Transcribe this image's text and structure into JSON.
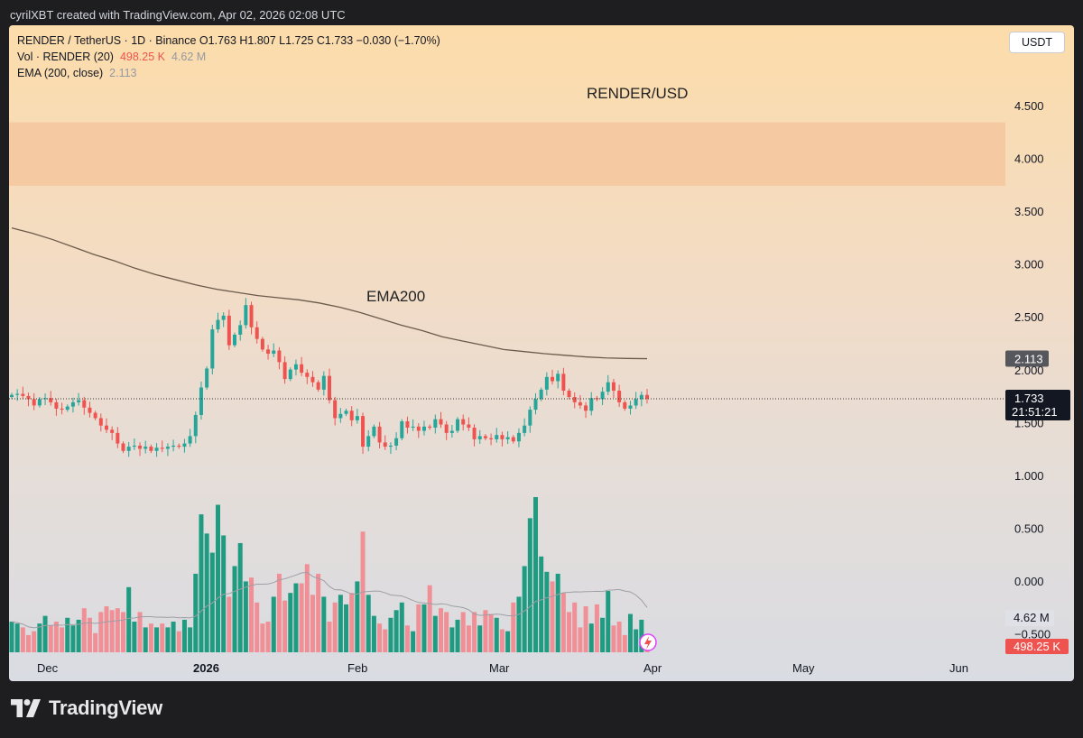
{
  "header": {
    "credit": "cyrilXBT created with TradingView.com, Apr 02, 2026 02:08 UTC"
  },
  "legend": {
    "line1": "RENDER / TetherUS · 1D · Binance  O1.763  H1.807  L1.725  C1.733  −0.030 (−1.70%)",
    "vol_label": "Vol · RENDER (20)",
    "vol_value": "498.25 K",
    "vol_ma": "4.62 M",
    "ema_label": "EMA (200, close)",
    "ema_value": "2.113"
  },
  "currency_button": "USDT",
  "annotations": {
    "title": "RENDER/USD",
    "ema": "EMA200"
  },
  "footer": {
    "brand": "TradingView"
  },
  "chart_data": {
    "type": "candlestick",
    "symbol": "RENDER / TetherUS",
    "interval": "1D",
    "exchange": "Binance",
    "last": {
      "open": 1.763,
      "high": 1.807,
      "low": 1.725,
      "close": 1.733,
      "change": "−0.030",
      "change_pct": "−1.70%"
    },
    "ema200": 2.113,
    "price_axis": {
      "ticks": [
        "4.500",
        "4.000",
        "3.500",
        "3.000",
        "2.500",
        "2.000",
        "1.500",
        "1.000",
        "0.500",
        "0.000",
        "−0.500"
      ],
      "range": [
        -0.7,
        5.0
      ]
    },
    "price_labels": {
      "ema": "2.113",
      "last": "1.733",
      "countdown": "21:51:21",
      "vol_ma": "4.62 M",
      "vol": "498.25 K"
    },
    "time_axis": [
      "Dec",
      "2026",
      "Feb",
      "Mar",
      "Apr",
      "May",
      "Jun"
    ],
    "resistance_zone": {
      "from": 3.75,
      "to": 4.35,
      "color": "#f5c59e"
    },
    "colors": {
      "up": "#26a69a",
      "down": "#ef5350",
      "vol_up": "#1e9b80",
      "vol_down": "#f08f95",
      "ema": "#6b5a4a"
    },
    "candles_close": [
      1.77,
      1.78,
      1.76,
      1.73,
      1.67,
      1.73,
      1.74,
      1.7,
      1.64,
      1.63,
      1.66,
      1.7,
      1.72,
      1.65,
      1.6,
      1.55,
      1.48,
      1.44,
      1.41,
      1.31,
      1.24,
      1.28,
      1.29,
      1.26,
      1.28,
      1.24,
      1.27,
      1.26,
      1.28,
      1.29,
      1.28,
      1.31,
      1.38,
      1.58,
      1.84,
      2.02,
      2.39,
      2.48,
      2.52,
      2.24,
      2.34,
      2.43,
      2.62,
      2.41,
      2.3,
      2.2,
      2.16,
      2.19,
      2.08,
      1.92,
      2.01,
      2.06,
      1.98,
      1.94,
      1.89,
      1.82,
      1.95,
      1.72,
      1.55,
      1.59,
      1.62,
      1.53,
      1.57,
      1.28,
      1.38,
      1.47,
      1.32,
      1.28,
      1.29,
      1.36,
      1.52,
      1.46,
      1.47,
      1.43,
      1.47,
      1.46,
      1.54,
      1.49,
      1.41,
      1.43,
      1.54,
      1.49,
      1.46,
      1.35,
      1.38,
      1.36,
      1.35,
      1.39,
      1.35,
      1.37,
      1.33,
      1.41,
      1.48,
      1.63,
      1.73,
      1.82,
      1.94,
      1.9,
      1.97,
      1.81,
      1.75,
      1.7,
      1.67,
      1.62,
      1.74,
      1.73,
      1.8,
      1.89,
      1.81,
      1.7,
      1.64,
      1.67,
      1.73,
      1.77,
      1.733
    ],
    "volume": [
      1.6,
      1.5,
      1.3,
      0.9,
      1.1,
      1.5,
      1.9,
      1.4,
      1.6,
      1.3,
      1.8,
      1.4,
      1.7,
      2.3,
      1.8,
      1.0,
      2.1,
      2.4,
      2.2,
      2.3,
      2.1,
      3.4,
      1.6,
      2.1,
      1.3,
      1.5,
      1.3,
      1.5,
      1.3,
      1.6,
      1.1,
      1.7,
      1.3,
      4.1,
      7.2,
      6.2,
      5.2,
      7.7,
      6.1,
      2.9,
      4.5,
      5.7,
      3.7,
      3.9,
      2.6,
      1.5,
      1.6,
      2.9,
      4.1,
      2.7,
      3.1,
      3.6,
      3.6,
      4.6,
      3.0,
      4.1,
      2.9,
      1.6,
      2.6,
      3.0,
      2.5,
      3.1,
      3.7,
      6.3,
      3.0,
      1.9,
      1.5,
      1.2,
      1.8,
      2.2,
      2.6,
      1.4,
      1.1,
      2.5,
      2.5,
      3.5,
      1.9,
      2.3,
      2.1,
      1.3,
      1.7,
      2.1,
      1.4,
      2.1,
      1.4,
      2.2,
      2.0,
      1.8,
      1.2,
      1.1,
      2.6,
      2.9,
      4.5,
      7.0,
      8.1,
      5.0,
      4.2,
      3.7,
      4.1,
      3.1,
      2.1,
      2.6,
      1.3,
      2.4,
      1.5,
      2.5,
      1.8,
      3.2,
      1.4,
      1.6,
      0.9,
      2.0,
      1.2,
      1.7,
      0.5
    ],
    "ema_series": [
      3.35,
      3.3,
      3.24,
      3.17,
      3.1,
      3.04,
      2.97,
      2.91,
      2.86,
      2.81,
      2.77,
      2.74,
      2.71,
      2.69,
      2.67,
      2.64,
      2.6,
      2.55,
      2.49,
      2.43,
      2.38,
      2.32,
      2.28,
      2.24,
      2.2,
      2.18,
      2.16,
      2.145,
      2.13,
      2.12,
      2.115,
      2.113
    ]
  }
}
